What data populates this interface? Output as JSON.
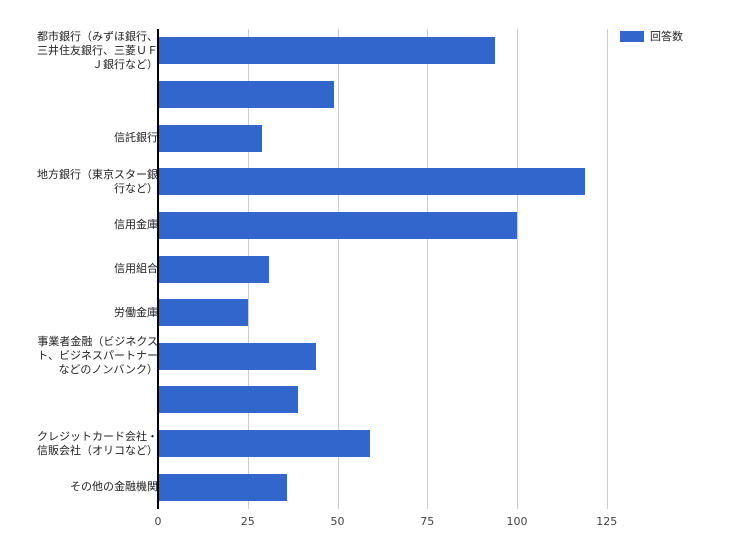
{
  "chart_data": {
    "type": "bar",
    "orientation": "horizontal",
    "title": "",
    "xlabel": "",
    "ylabel": "",
    "categories": [
      "都市銀行（みずほ銀行、三井住友銀行、三菱ＵＦＪ銀行など）",
      "",
      "信託銀行",
      "地方銀行（東京スター銀行など）",
      "信用金庫",
      "信用組合",
      "労働金庫",
      "事業者金融（ビジネクスト、ビジネスパートナーなどのノンバンク）",
      "",
      "クレジットカード会社・信販会社（オリコなど）",
      "その他の金融機関"
    ],
    "category_lines": [
      [
        "都市銀行（みずほ銀行、",
        "三井住友銀行、三菱ＵＦ",
        "Ｊ銀行など）"
      ],
      [],
      [
        "信託銀行"
      ],
      [
        "地方銀行（東京スター銀",
        "行など）"
      ],
      [
        "信用金庫"
      ],
      [
        "信用組合"
      ],
      [
        "労働金庫"
      ],
      [
        "事業者金融（ビジネクス",
        "ト、ビジネスパートナー",
        "などのノンバンク）"
      ],
      [],
      [
        "クレジットカード会社・",
        "信販会社（オリコなど）"
      ],
      [
        "その他の金融機関"
      ]
    ],
    "series": [
      {
        "name": "回答数",
        "color": "#3366cc",
        "values": [
          94,
          49,
          29,
          119,
          100,
          31,
          25,
          44,
          39,
          59,
          36
        ]
      }
    ],
    "xlim": [
      0,
      128
    ],
    "xticks": [
      0,
      25,
      50,
      75,
      100,
      125
    ],
    "grid": true,
    "legend_position": "right"
  },
  "legend": {
    "label": "回答数",
    "color": "#3366cc"
  },
  "axis": {
    "ticks": [
      "0",
      "25",
      "50",
      "75",
      "100",
      "125"
    ]
  }
}
